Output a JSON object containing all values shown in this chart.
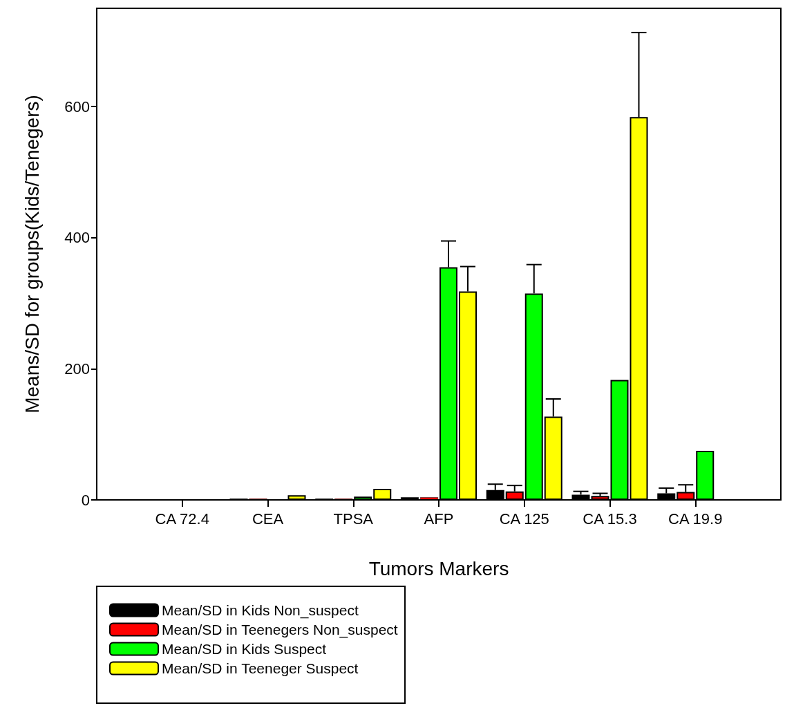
{
  "chart_data": {
    "type": "bar",
    "xlabel": "Tumors Markers",
    "ylabel": "Means/SD for groups(Kids/Tenegers)",
    "categories": [
      "CA 72.4",
      "CEA",
      "TPSA",
      "AFP",
      "CA 125",
      "CA 15.3",
      "CA 19.9"
    ],
    "series": [
      {
        "name": "Mean/SD in Kids Non_suspect",
        "color": "#000000",
        "values": [
          null,
          2,
          2,
          4,
          15,
          8,
          10
        ],
        "errors": [
          null,
          null,
          null,
          null,
          9,
          5,
          8
        ]
      },
      {
        "name": "Mean/SD in Teenegers Non_suspect",
        "color": "#ff0000",
        "values": [
          null,
          2,
          2,
          4,
          13,
          6,
          12
        ],
        "errors": [
          null,
          null,
          null,
          null,
          9,
          4,
          11
        ]
      },
      {
        "name": "Mean/SD in Kids Suspect",
        "color": "#00ff00",
        "values": [
          null,
          null,
          5,
          355,
          315,
          183,
          75
        ],
        "errors": [
          null,
          null,
          null,
          40,
          44,
          null,
          null
        ]
      },
      {
        "name": "Mean/SD in Teeneger Suspect",
        "color": "#ffff00",
        "values": [
          null,
          7,
          17,
          318,
          127,
          584,
          null
        ],
        "errors": [
          null,
          null,
          null,
          38,
          27,
          129,
          null
        ]
      }
    ],
    "ylim": [
      0,
      750
    ],
    "yticks": [
      0,
      200,
      400,
      600
    ],
    "legend": "bottom left"
  }
}
